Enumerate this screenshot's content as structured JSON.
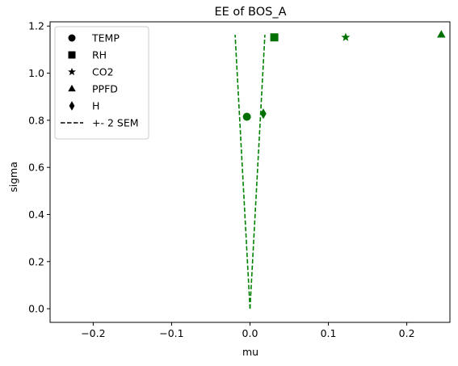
{
  "chart_data": {
    "type": "scatter",
    "title": "EE of BOS_A",
    "xlabel": "mu",
    "ylabel": "sigma",
    "xlim": [
      -0.255,
      0.255
    ],
    "ylim": [
      -0.058,
      1.218
    ],
    "xticks": [
      -0.2,
      -0.1,
      0.0,
      0.1,
      0.2
    ],
    "xtick_labels": [
      "−0.2",
      "−0.1",
      "0.0",
      "0.1",
      "0.2"
    ],
    "yticks": [
      0.0,
      0.2,
      0.4,
      0.6,
      0.8,
      1.0,
      1.2
    ],
    "ytick_labels": [
      "0.0",
      "0.2",
      "0.4",
      "0.6",
      "0.8",
      "1.0",
      "1.2"
    ],
    "grid": false,
    "legend_position": "top-left",
    "marker_color": "#007000",
    "sem_line_color": "#008000",
    "series": [
      {
        "name": "TEMP",
        "marker": "circle",
        "x": -0.004,
        "y": 0.815
      },
      {
        "name": "RH",
        "marker": "square",
        "x": 0.031,
        "y": 1.152
      },
      {
        "name": "CO2",
        "marker": "star",
        "x": 0.122,
        "y": 1.152
      },
      {
        "name": "PPFD",
        "marker": "triangle",
        "x": 0.244,
        "y": 1.163
      },
      {
        "name": "H",
        "marker": "diamond",
        "x": 0.017,
        "y": 0.828
      }
    ],
    "sem_lines": {
      "name": "+- 2 SEM",
      "left": [
        [
          0.0,
          0.0
        ],
        [
          -0.019,
          1.163
        ]
      ],
      "right": [
        [
          0.0,
          0.0
        ],
        [
          0.019,
          1.163
        ]
      ]
    }
  }
}
